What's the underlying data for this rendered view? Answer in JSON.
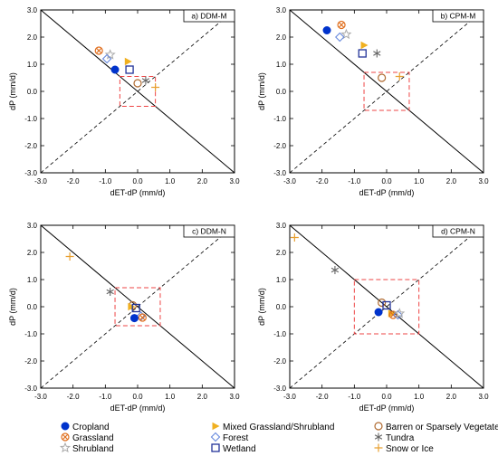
{
  "colors": {
    "cropland": "#0033cc",
    "grassland": "#e07020",
    "shrubland": "#aaaaaa",
    "mixed": "#f0b020",
    "forest": "#6688dd",
    "wetland": "#223399",
    "barren": "#b06a30",
    "tundra": "#666666",
    "snow": "#e8a030",
    "box": "#ee4444"
  },
  "legend": [
    {
      "key": "cropland",
      "label": "Cropland",
      "marker": "filled-circle"
    },
    {
      "key": "mixed",
      "label": "Mixed Grassland/Shrubland",
      "marker": "filled-triangle"
    },
    {
      "key": "barren",
      "label": "Barren or Sparsely Vegetated",
      "marker": "open-circle"
    },
    {
      "key": "grassland",
      "label": "Grassland",
      "marker": "circle-x"
    },
    {
      "key": "forest",
      "label": "Forest",
      "marker": "open-diamond"
    },
    {
      "key": "tundra",
      "label": "Tundra",
      "marker": "asterisk"
    },
    {
      "key": "shrubland",
      "label": "Shrubland",
      "marker": "open-star"
    },
    {
      "key": "wetland",
      "label": "Wetland",
      "marker": "open-square"
    },
    {
      "key": "snow",
      "label": "Snow or Ice",
      "marker": "plus"
    }
  ],
  "chart_data": [
    {
      "type": "scatter",
      "title": "a) DDM-M",
      "xlabel": "dET-dP (mm/d)",
      "ylabel": "dP (mm/d)",
      "xlim": [
        -3,
        3
      ],
      "ylim": [
        -3,
        3
      ],
      "xticks": [
        "-3.0",
        "-2.0",
        "-1.0",
        "0.0",
        "1.0",
        "2.0",
        "3.0"
      ],
      "yticks": [
        "-3.0",
        "-2.0",
        "-1.0",
        "0.0",
        "1.0",
        "2.0",
        "3.0"
      ],
      "box": {
        "x": [
          -0.55,
          0.55
        ],
        "y": [
          -0.55,
          0.55
        ]
      },
      "points": [
        {
          "key": "cropland",
          "x": -0.7,
          "y": 0.8
        },
        {
          "key": "grassland",
          "x": -1.2,
          "y": 1.5
        },
        {
          "key": "shrubland",
          "x": -0.85,
          "y": 1.35
        },
        {
          "key": "forest",
          "x": -0.95,
          "y": 1.2
        },
        {
          "key": "mixed",
          "x": -0.3,
          "y": 1.1
        },
        {
          "key": "wetland",
          "x": -0.25,
          "y": 0.8
        },
        {
          "key": "barren",
          "x": 0.0,
          "y": 0.3
        },
        {
          "key": "tundra",
          "x": 0.25,
          "y": 0.4
        },
        {
          "key": "snow",
          "x": 0.55,
          "y": 0.15
        }
      ]
    },
    {
      "type": "scatter",
      "title": "b) CPM-M",
      "xlabel": "dET-dP (mm/d)",
      "ylabel": "dP (mm/d)",
      "xlim": [
        -3,
        3
      ],
      "ylim": [
        -3,
        3
      ],
      "xticks": [
        "-3.0",
        "-2.0",
        "-1.0",
        "0.0",
        "1.0",
        "2.0",
        "3.0"
      ],
      "yticks": [
        "-3.0",
        "-2.0",
        "-1.0",
        "0.0",
        "1.0",
        "2.0",
        "3.0"
      ],
      "box": {
        "x": [
          -0.7,
          0.7
        ],
        "y": [
          -0.7,
          0.7
        ]
      },
      "points": [
        {
          "key": "cropland",
          "x": -1.85,
          "y": 2.25
        },
        {
          "key": "grassland",
          "x": -1.4,
          "y": 2.45
        },
        {
          "key": "shrubland",
          "x": -1.25,
          "y": 2.1
        },
        {
          "key": "forest",
          "x": -1.45,
          "y": 2.0
        },
        {
          "key": "mixed",
          "x": -0.7,
          "y": 1.7
        },
        {
          "key": "wetland",
          "x": -0.75,
          "y": 1.4
        },
        {
          "key": "tundra",
          "x": -0.3,
          "y": 1.4
        },
        {
          "key": "barren",
          "x": -0.15,
          "y": 0.5
        },
        {
          "key": "snow",
          "x": 0.4,
          "y": 0.55
        }
      ]
    },
    {
      "type": "scatter",
      "title": "c) DDM-N",
      "xlabel": "dET-dP (mm/d)",
      "ylabel": "dP (mm/d)",
      "xlim": [
        -3,
        3
      ],
      "ylim": [
        -3,
        3
      ],
      "xticks": [
        "-3.0",
        "-2.0",
        "-1.0",
        "0.0",
        "1.0",
        "2.0",
        "3.0"
      ],
      "yticks": [
        "-3.0",
        "-2.0",
        "-1.0",
        "0.0",
        "1.0",
        "2.0",
        "3.0"
      ],
      "box": {
        "x": [
          -0.7,
          0.7
        ],
        "y": [
          -0.7,
          0.7
        ]
      },
      "points": [
        {
          "key": "snow",
          "x": -2.1,
          "y": 1.85
        },
        {
          "key": "tundra",
          "x": -0.85,
          "y": 0.55
        },
        {
          "key": "barren",
          "x": -0.15,
          "y": 0.05
        },
        {
          "key": "mixed",
          "x": -0.2,
          "y": 0.0
        },
        {
          "key": "wetland",
          "x": -0.05,
          "y": -0.05
        },
        {
          "key": "forest",
          "x": 0.1,
          "y": -0.35
        },
        {
          "key": "grassland",
          "x": 0.15,
          "y": -0.4
        },
        {
          "key": "cropland",
          "x": -0.1,
          "y": -0.42
        }
      ]
    },
    {
      "type": "scatter",
      "title": "d) CPM-N",
      "xlabel": "dET-dP (mm/d)",
      "ylabel": "dP (mm/d)",
      "xlim": [
        -3,
        3
      ],
      "ylim": [
        -3,
        3
      ],
      "xticks": [
        "-3.0",
        "-2.0",
        "-1.0",
        "0.0",
        "1.0",
        "2.0",
        "3.0"
      ],
      "yticks": [
        "-3.0",
        "-2.0",
        "-1.0",
        "0.0",
        "1.0",
        "2.0",
        "3.0"
      ],
      "box": {
        "x": [
          -1.0,
          1.0
        ],
        "y": [
          -1.0,
          1.0
        ]
      },
      "points": [
        {
          "key": "snow",
          "x": -2.85,
          "y": 2.55
        },
        {
          "key": "tundra",
          "x": -1.6,
          "y": 1.35
        },
        {
          "key": "barren",
          "x": -0.15,
          "y": 0.15
        },
        {
          "key": "wetland",
          "x": 0.0,
          "y": 0.05
        },
        {
          "key": "cropland",
          "x": -0.25,
          "y": -0.2
        },
        {
          "key": "mixed",
          "x": 0.15,
          "y": -0.25
        },
        {
          "key": "grassland",
          "x": 0.2,
          "y": -0.3
        },
        {
          "key": "forest",
          "x": 0.35,
          "y": -0.3
        },
        {
          "key": "shrubland",
          "x": 0.4,
          "y": -0.25
        }
      ]
    }
  ]
}
